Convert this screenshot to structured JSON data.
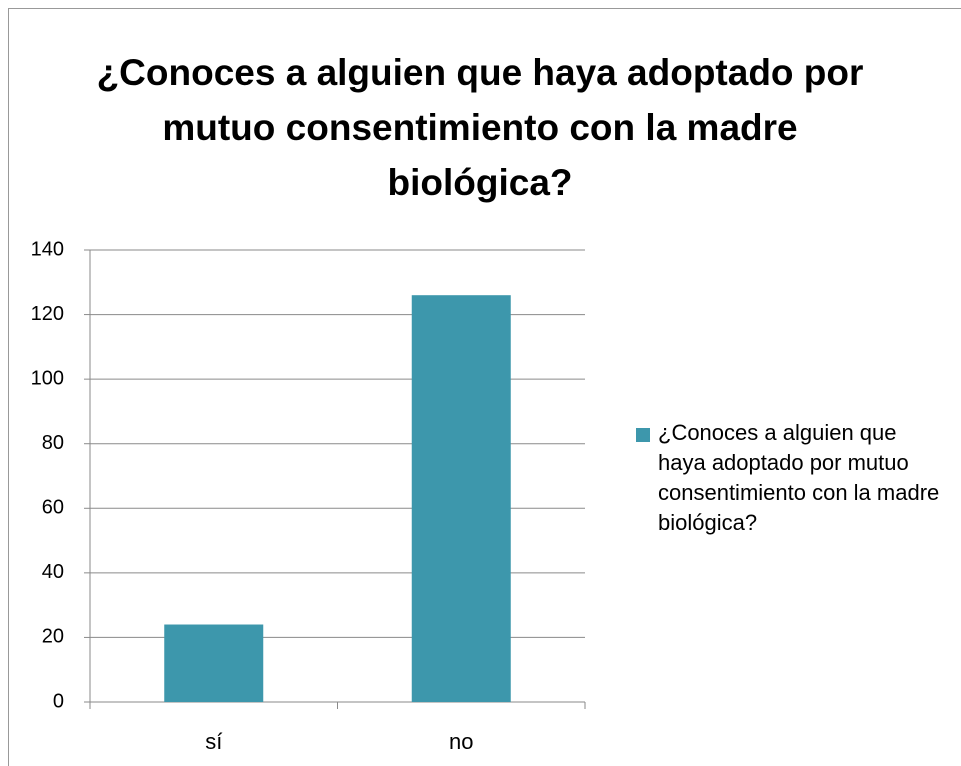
{
  "chart_data": {
    "type": "bar",
    "title": "¿Conoces a alguien que haya adoptado por mutuo consentimiento con la madre biológica?",
    "categories": [
      "sí",
      "no"
    ],
    "series": [
      {
        "name": "¿Conoces a alguien que haya adoptado por mutuo consentimiento con la madre biológica?",
        "color": "#3d97ac",
        "values": [
          24,
          126
        ]
      }
    ],
    "ylim": [
      0,
      140
    ],
    "yticks": [
      0,
      20,
      40,
      60,
      80,
      100,
      120,
      140
    ],
    "grid": true,
    "legend": "right"
  }
}
